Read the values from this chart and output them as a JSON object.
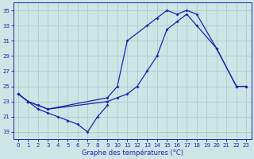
{
  "title": "Graphe des températures (°C)",
  "bg_color": "#cce5e5",
  "grid_color": "#aacccc",
  "line_color": "#2222aa",
  "ylim": [
    18,
    36
  ],
  "yticks": [
    19,
    21,
    23,
    25,
    27,
    29,
    31,
    33,
    35
  ],
  "xlim": [
    -0.5,
    23.5
  ],
  "xticks": [
    0,
    1,
    2,
    3,
    4,
    5,
    6,
    7,
    8,
    9,
    10,
    11,
    12,
    13,
    14,
    15,
    16,
    17,
    18,
    19,
    20,
    21,
    22,
    23
  ],
  "line_bottom_x": [
    0,
    1,
    2,
    3,
    4,
    5,
    6,
    7,
    8,
    9
  ],
  "line_bottom_y": [
    24,
    23,
    22,
    21.5,
    21,
    20.5,
    20,
    19,
    21,
    22.5
  ],
  "line_mid_x": [
    0,
    1,
    2,
    3,
    9,
    10,
    11,
    12,
    13,
    14,
    15,
    16,
    17,
    18,
    20,
    22,
    23
  ],
  "line_mid_y": [
    24,
    23,
    22.5,
    22,
    23,
    23.5,
    24,
    25,
    27,
    29,
    32.5,
    33.5,
    34.5,
    33,
    30,
    25,
    25
  ],
  "line_top_x": [
    0,
    1,
    2,
    3,
    9,
    10,
    11,
    13,
    14,
    15,
    16,
    17,
    18,
    20,
    22,
    23
  ],
  "line_top_y": [
    24,
    23,
    22.5,
    22,
    23.5,
    25,
    31,
    33,
    34,
    35,
    34.5,
    35,
    34.5,
    30,
    25,
    25
  ]
}
